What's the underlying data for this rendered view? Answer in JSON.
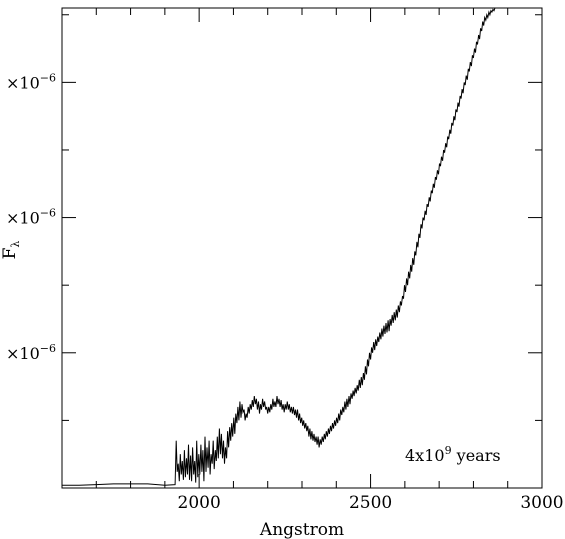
{
  "chart_data": {
    "type": "line",
    "xlabel": "Angstrom",
    "ylabel": "F",
    "ylabel_subscript": "λ",
    "annotation": {
      "text_base": "4x10",
      "text_exp": "9",
      "text_suffix": " years"
    },
    "xlim": [
      1600,
      3000
    ],
    "ylim": [
      0,
      3.55
    ],
    "x_ticks": [
      {
        "value": 2000,
        "label": "2000"
      },
      {
        "value": 2500,
        "label": "2500"
      },
      {
        "value": 3000,
        "label": "3000"
      }
    ],
    "y_ticks": [
      {
        "value": 1,
        "label_prefix": "×10",
        "label_exp": "−6"
      },
      {
        "value": 2,
        "label_prefix": "×10",
        "label_exp": "−6"
      },
      {
        "value": 3,
        "label_prefix": "×10",
        "label_exp": "−6"
      }
    ],
    "series": [
      {
        "points": [
          [
            1600,
            0.02
          ],
          [
            1650,
            0.02
          ],
          [
            1700,
            0.025
          ],
          [
            1750,
            0.03
          ],
          [
            1800,
            0.03
          ],
          [
            1850,
            0.03
          ],
          [
            1900,
            0.02
          ],
          [
            1930,
            0.025
          ],
          [
            1933,
            0.35
          ],
          [
            1936,
            0.12
          ],
          [
            1939,
            0.18
          ],
          [
            1942,
            0.05
          ],
          [
            1945,
            0.25
          ],
          [
            1948,
            0.1
          ],
          [
            1951,
            0.2
          ],
          [
            1954,
            0.06
          ],
          [
            1957,
            0.28
          ],
          [
            1960,
            0.08
          ],
          [
            1963,
            0.22
          ],
          [
            1966,
            0.1
          ],
          [
            1969,
            0.32
          ],
          [
            1972,
            0.06
          ],
          [
            1975,
            0.24
          ],
          [
            1978,
            0.05
          ],
          [
            1981,
            0.3
          ],
          [
            1984,
            0.1
          ],
          [
            1987,
            0.2
          ],
          [
            1990,
            0.04
          ],
          [
            1993,
            0.35
          ],
          [
            1996,
            0.08
          ],
          [
            1999,
            0.25
          ],
          [
            2002,
            0.1
          ],
          [
            2005,
            0.32
          ],
          [
            2008,
            0.12
          ],
          [
            2011,
            0.28
          ],
          [
            2014,
            0.05
          ],
          [
            2017,
            0.38
          ],
          [
            2020,
            0.12
          ],
          [
            2023,
            0.3
          ],
          [
            2026,
            0.15
          ],
          [
            2029,
            0.35
          ],
          [
            2032,
            0.1
          ],
          [
            2035,
            0.25
          ],
          [
            2038,
            0.18
          ],
          [
            2041,
            0.35
          ],
          [
            2044,
            0.14
          ],
          [
            2047,
            0.28
          ],
          [
            2050,
            0.2
          ],
          [
            2053,
            0.38
          ],
          [
            2056,
            0.22
          ],
          [
            2059,
            0.44
          ],
          [
            2062,
            0.25
          ],
          [
            2065,
            0.4
          ],
          [
            2068,
            0.22
          ],
          [
            2071,
            0.35
          ],
          [
            2074,
            0.18
          ],
          [
            2077,
            0.3
          ],
          [
            2080,
            0.22
          ],
          [
            2083,
            0.42
          ],
          [
            2086,
            0.3
          ],
          [
            2089,
            0.45
          ],
          [
            2092,
            0.35
          ],
          [
            2095,
            0.48
          ],
          [
            2098,
            0.38
          ],
          [
            2101,
            0.52
          ],
          [
            2104,
            0.4
          ],
          [
            2107,
            0.55
          ],
          [
            2110,
            0.48
          ],
          [
            2113,
            0.6
          ],
          [
            2116,
            0.5
          ],
          [
            2119,
            0.64
          ],
          [
            2122,
            0.52
          ],
          [
            2125,
            0.62
          ],
          [
            2128,
            0.56
          ],
          [
            2131,
            0.58
          ],
          [
            2134,
            0.5
          ],
          [
            2137,
            0.55
          ],
          [
            2140,
            0.52
          ],
          [
            2143,
            0.6
          ],
          [
            2146,
            0.55
          ],
          [
            2149,
            0.62
          ],
          [
            2152,
            0.58
          ],
          [
            2155,
            0.65
          ],
          [
            2158,
            0.6
          ],
          [
            2161,
            0.68
          ],
          [
            2164,
            0.62
          ],
          [
            2167,
            0.66
          ],
          [
            2170,
            0.58
          ],
          [
            2173,
            0.64
          ],
          [
            2176,
            0.55
          ],
          [
            2179,
            0.62
          ],
          [
            2182,
            0.58
          ],
          [
            2185,
            0.66
          ],
          [
            2188,
            0.6
          ],
          [
            2191,
            0.64
          ],
          [
            2194,
            0.58
          ],
          [
            2197,
            0.6
          ],
          [
            2200,
            0.55
          ],
          [
            2203,
            0.6
          ],
          [
            2206,
            0.56
          ],
          [
            2209,
            0.62
          ],
          [
            2212,
            0.58
          ],
          [
            2215,
            0.66
          ],
          [
            2218,
            0.6
          ],
          [
            2221,
            0.64
          ],
          [
            2224,
            0.6
          ],
          [
            2227,
            0.68
          ],
          [
            2230,
            0.62
          ],
          [
            2233,
            0.66
          ],
          [
            2236,
            0.6
          ],
          [
            2239,
            0.65
          ],
          [
            2242,
            0.58
          ],
          [
            2245,
            0.62
          ],
          [
            2248,
            0.56
          ],
          [
            2251,
            0.62
          ],
          [
            2254,
            0.58
          ],
          [
            2257,
            0.64
          ],
          [
            2260,
            0.58
          ],
          [
            2263,
            0.62
          ],
          [
            2266,
            0.56
          ],
          [
            2269,
            0.6
          ],
          [
            2272,
            0.55
          ],
          [
            2275,
            0.6
          ],
          [
            2278,
            0.54
          ],
          [
            2281,
            0.58
          ],
          [
            2284,
            0.52
          ],
          [
            2287,
            0.58
          ],
          [
            2290,
            0.5
          ],
          [
            2293,
            0.55
          ],
          [
            2296,
            0.48
          ],
          [
            2299,
            0.52
          ],
          [
            2302,
            0.46
          ],
          [
            2305,
            0.5
          ],
          [
            2308,
            0.44
          ],
          [
            2311,
            0.48
          ],
          [
            2314,
            0.42
          ],
          [
            2317,
            0.46
          ],
          [
            2320,
            0.38
          ],
          [
            2323,
            0.44
          ],
          [
            2326,
            0.36
          ],
          [
            2329,
            0.42
          ],
          [
            2332,
            0.35
          ],
          [
            2335,
            0.4
          ],
          [
            2338,
            0.34
          ],
          [
            2341,
            0.38
          ],
          [
            2344,
            0.32
          ],
          [
            2347,
            0.38
          ],
          [
            2350,
            0.3
          ],
          [
            2353,
            0.36
          ],
          [
            2356,
            0.32
          ],
          [
            2359,
            0.38
          ],
          [
            2362,
            0.34
          ],
          [
            2365,
            0.4
          ],
          [
            2368,
            0.36
          ],
          [
            2371,
            0.42
          ],
          [
            2374,
            0.38
          ],
          [
            2377,
            0.44
          ],
          [
            2380,
            0.4
          ],
          [
            2383,
            0.46
          ],
          [
            2386,
            0.42
          ],
          [
            2389,
            0.48
          ],
          [
            2392,
            0.44
          ],
          [
            2395,
            0.5
          ],
          [
            2398,
            0.46
          ],
          [
            2401,
            0.52
          ],
          [
            2404,
            0.48
          ],
          [
            2407,
            0.55
          ],
          [
            2410,
            0.5
          ],
          [
            2413,
            0.58
          ],
          [
            2416,
            0.54
          ],
          [
            2419,
            0.6
          ],
          [
            2422,
            0.56
          ],
          [
            2425,
            0.64
          ],
          [
            2428,
            0.58
          ],
          [
            2431,
            0.66
          ],
          [
            2434,
            0.6
          ],
          [
            2437,
            0.68
          ],
          [
            2440,
            0.62
          ],
          [
            2443,
            0.7
          ],
          [
            2446,
            0.66
          ],
          [
            2449,
            0.72
          ],
          [
            2452,
            0.68
          ],
          [
            2455,
            0.74
          ],
          [
            2458,
            0.7
          ],
          [
            2461,
            0.76
          ],
          [
            2464,
            0.72
          ],
          [
            2467,
            0.8
          ],
          [
            2470,
            0.74
          ],
          [
            2473,
            0.82
          ],
          [
            2476,
            0.76
          ],
          [
            2479,
            0.85
          ],
          [
            2482,
            0.8
          ],
          [
            2485,
            0.9
          ],
          [
            2488,
            0.84
          ],
          [
            2491,
            0.95
          ],
          [
            2494,
            0.9
          ],
          [
            2497,
            1.0
          ],
          [
            2500,
            0.95
          ],
          [
            2503,
            1.04
          ],
          [
            2506,
            1.0
          ],
          [
            2509,
            1.08
          ],
          [
            2512,
            1.02
          ],
          [
            2515,
            1.1
          ],
          [
            2518,
            1.05
          ],
          [
            2521,
            1.12
          ],
          [
            2524,
            1.08
          ],
          [
            2527,
            1.15
          ],
          [
            2530,
            1.1
          ],
          [
            2533,
            1.18
          ],
          [
            2536,
            1.12
          ],
          [
            2539,
            1.2
          ],
          [
            2542,
            1.14
          ],
          [
            2545,
            1.22
          ],
          [
            2548,
            1.15
          ],
          [
            2551,
            1.24
          ],
          [
            2554,
            1.16
          ],
          [
            2557,
            1.25
          ],
          [
            2560,
            1.2
          ],
          [
            2563,
            1.28
          ],
          [
            2566,
            1.22
          ],
          [
            2569,
            1.3
          ],
          [
            2572,
            1.24
          ],
          [
            2575,
            1.32
          ],
          [
            2578,
            1.26
          ],
          [
            2581,
            1.35
          ],
          [
            2584,
            1.3
          ],
          [
            2587,
            1.38
          ],
          [
            2590,
            1.35
          ],
          [
            2593,
            1.42
          ],
          [
            2596,
            1.4
          ],
          [
            2599,
            1.5
          ],
          [
            2602,
            1.45
          ],
          [
            2605,
            1.55
          ],
          [
            2608,
            1.5
          ],
          [
            2611,
            1.6
          ],
          [
            2614,
            1.55
          ],
          [
            2617,
            1.65
          ],
          [
            2620,
            1.6
          ],
          [
            2623,
            1.7
          ],
          [
            2626,
            1.65
          ],
          [
            2629,
            1.75
          ],
          [
            2632,
            1.72
          ],
          [
            2635,
            1.82
          ],
          [
            2638,
            1.78
          ],
          [
            2641,
            1.88
          ],
          [
            2644,
            1.85
          ],
          [
            2647,
            1.95
          ],
          [
            2650,
            1.92
          ],
          [
            2653,
            2.0
          ],
          [
            2656,
            1.98
          ],
          [
            2659,
            2.05
          ],
          [
            2662,
            2.02
          ],
          [
            2665,
            2.1
          ],
          [
            2668,
            2.08
          ],
          [
            2671,
            2.15
          ],
          [
            2674,
            2.12
          ],
          [
            2677,
            2.2
          ],
          [
            2680,
            2.18
          ],
          [
            2683,
            2.25
          ],
          [
            2686,
            2.22
          ],
          [
            2689,
            2.3
          ],
          [
            2692,
            2.28
          ],
          [
            2695,
            2.35
          ],
          [
            2698,
            2.32
          ],
          [
            2701,
            2.4
          ],
          [
            2704,
            2.38
          ],
          [
            2707,
            2.45
          ],
          [
            2710,
            2.42
          ],
          [
            2713,
            2.5
          ],
          [
            2716,
            2.48
          ],
          [
            2719,
            2.55
          ],
          [
            2722,
            2.52
          ],
          [
            2725,
            2.6
          ],
          [
            2728,
            2.58
          ],
          [
            2731,
            2.65
          ],
          [
            2734,
            2.62
          ],
          [
            2737,
            2.7
          ],
          [
            2740,
            2.68
          ],
          [
            2743,
            2.75
          ],
          [
            2746,
            2.72
          ],
          [
            2749,
            2.8
          ],
          [
            2752,
            2.78
          ],
          [
            2755,
            2.85
          ],
          [
            2758,
            2.82
          ],
          [
            2761,
            2.9
          ],
          [
            2764,
            2.88
          ],
          [
            2767,
            2.95
          ],
          [
            2770,
            2.92
          ],
          [
            2773,
            3.0
          ],
          [
            2776,
            2.98
          ],
          [
            2779,
            3.05
          ],
          [
            2782,
            3.02
          ],
          [
            2785,
            3.1
          ],
          [
            2788,
            3.08
          ],
          [
            2791,
            3.15
          ],
          [
            2794,
            3.12
          ],
          [
            2797,
            3.2
          ],
          [
            2800,
            3.18
          ],
          [
            2803,
            3.25
          ],
          [
            2806,
            3.22
          ],
          [
            2809,
            3.3
          ],
          [
            2812,
            3.28
          ],
          [
            2815,
            3.35
          ],
          [
            2818,
            3.32
          ],
          [
            2821,
            3.4
          ],
          [
            2824,
            3.38
          ],
          [
            2827,
            3.45
          ],
          [
            2830,
            3.42
          ],
          [
            2833,
            3.48
          ],
          [
            2836,
            3.46
          ],
          [
            2839,
            3.5
          ],
          [
            2842,
            3.48
          ],
          [
            2845,
            3.52
          ],
          [
            2848,
            3.5
          ],
          [
            2851,
            3.53
          ],
          [
            2854,
            3.52
          ],
          [
            2857,
            3.54
          ],
          [
            2860,
            3.53
          ],
          [
            2863,
            3.55
          ]
        ]
      }
    ]
  }
}
